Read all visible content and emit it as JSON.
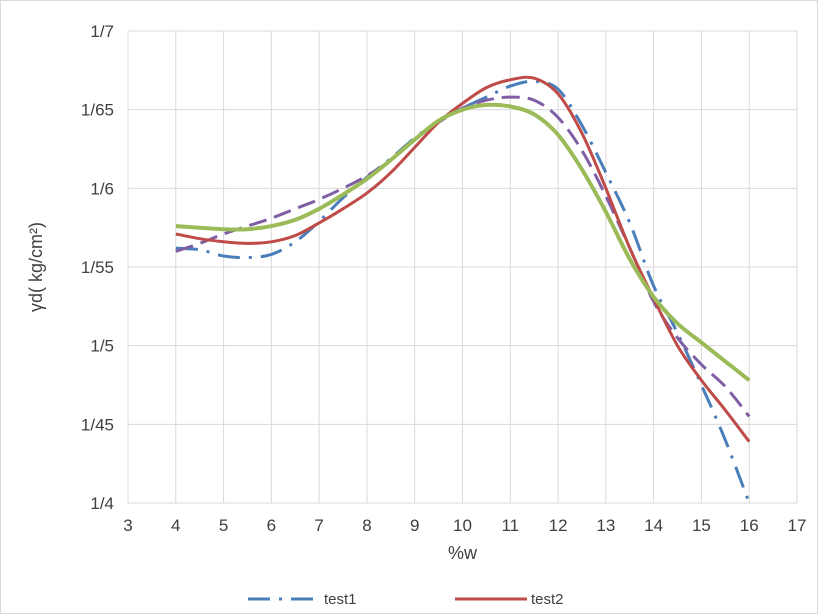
{
  "chart_data": {
    "type": "line",
    "title": "",
    "xlabel": "%w",
    "ylabel": "γd( kg/cm²)",
    "xlim": [
      3,
      17
    ],
    "ylim": [
      1.4,
      1.7
    ],
    "x_ticks": [
      3,
      4,
      5,
      6,
      7,
      8,
      9,
      10,
      11,
      12,
      13,
      14,
      15,
      16,
      17
    ],
    "y_ticks": [
      {
        "value": 1.4,
        "label": "1/4"
      },
      {
        "value": 1.45,
        "label": "1/45"
      },
      {
        "value": 1.5,
        "label": "1/5"
      },
      {
        "value": 1.55,
        "label": "1/55"
      },
      {
        "value": 1.6,
        "label": "1/6"
      },
      {
        "value": 1.65,
        "label": "1/65"
      },
      {
        "value": 1.7,
        "label": "1/7"
      }
    ],
    "grid": true,
    "legend_position": "bottom",
    "series": [
      {
        "name": "test1",
        "color": "#4a7ebb",
        "dash": "dash-dot",
        "x": [
          4,
          4.5,
          5,
          5.5,
          6,
          6.5,
          7,
          7.5,
          8,
          8.5,
          9,
          9.5,
          10,
          10.5,
          11,
          11.5,
          12,
          12.5,
          13,
          13.5,
          14,
          14.5,
          15,
          15.5,
          16
        ],
        "y": [
          1.562,
          1.561,
          1.557,
          1.556,
          1.558,
          1.566,
          1.579,
          1.594,
          1.607,
          1.619,
          1.632,
          1.643,
          1.651,
          1.658,
          1.665,
          1.668,
          1.663,
          1.64,
          1.61,
          1.578,
          1.538,
          1.508,
          1.475,
          1.44,
          1.4
        ]
      },
      {
        "name": "test2",
        "color": "#be4b48",
        "dash": "solid",
        "x": [
          4,
          4.5,
          5,
          5.5,
          6,
          6.5,
          7,
          7.5,
          8,
          8.5,
          9,
          9.5,
          10,
          10.5,
          11,
          11.5,
          12,
          12.5,
          13,
          13.5,
          14,
          14.5,
          15,
          15.5,
          16
        ],
        "y": [
          1.571,
          1.568,
          1.566,
          1.565,
          1.566,
          1.57,
          1.578,
          1.587,
          1.597,
          1.61,
          1.626,
          1.642,
          1.654,
          1.664,
          1.669,
          1.67,
          1.66,
          1.635,
          1.6,
          1.562,
          1.53,
          1.5,
          1.478,
          1.459,
          1.439
        ]
      },
      {
        "name": "",
        "color": "#7f5ea4",
        "dash": "long-dash",
        "x": [
          4,
          4.5,
          5,
          5.5,
          6,
          6.5,
          7,
          7.5,
          8,
          8.5,
          9,
          9.5,
          10,
          10.5,
          11,
          11.5,
          12,
          12.5,
          13,
          13.5,
          14,
          14.5,
          15,
          15.5,
          16
        ],
        "y": [
          1.56,
          1.565,
          1.571,
          1.576,
          1.581,
          1.587,
          1.593,
          1.6,
          1.608,
          1.618,
          1.631,
          1.642,
          1.651,
          1.656,
          1.658,
          1.656,
          1.645,
          1.624,
          1.595,
          1.562,
          1.528,
          1.505,
          1.488,
          1.474,
          1.455
        ]
      },
      {
        "name": "",
        "color": "#9bbb59",
        "dash": "solid",
        "x": [
          4,
          4.5,
          5,
          5.5,
          6,
          6.5,
          7,
          7.5,
          8,
          8.5,
          9,
          9.5,
          10,
          10.5,
          11,
          11.5,
          12,
          12.5,
          13,
          13.5,
          14,
          14.5,
          15,
          15.5,
          16
        ],
        "y": [
          1.576,
          1.575,
          1.574,
          1.574,
          1.576,
          1.58,
          1.587,
          1.596,
          1.606,
          1.618,
          1.631,
          1.643,
          1.65,
          1.653,
          1.652,
          1.647,
          1.634,
          1.612,
          1.585,
          1.555,
          1.531,
          1.514,
          1.502,
          1.49,
          1.478
        ]
      }
    ]
  }
}
